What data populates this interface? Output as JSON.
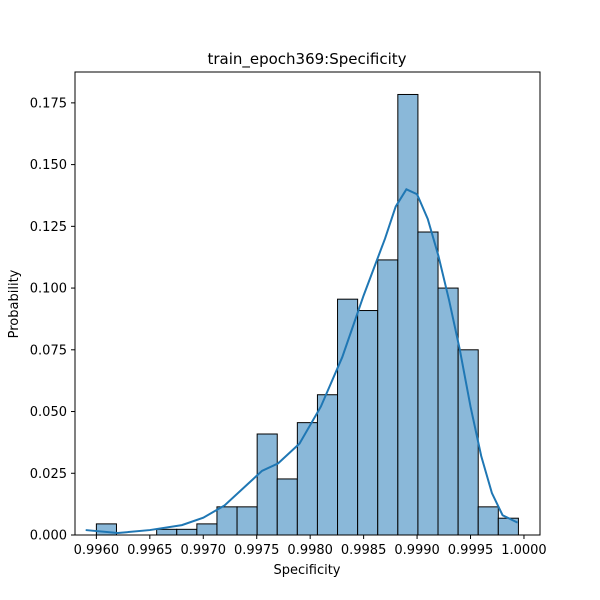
{
  "chart_data": {
    "type": "histogram",
    "title": "train_epoch369:Specificity",
    "x_label": "Specificity",
    "y_label": "Probability",
    "bins": [
      0.996,
      0.996188,
      0.996376,
      0.996564,
      0.996752,
      0.99694,
      0.997128,
      0.997316,
      0.997504,
      0.997692,
      0.99788,
      0.998068,
      0.998256,
      0.998444,
      0.998632,
      0.99882,
      0.999008,
      0.999196,
      0.999384,
      0.999572,
      0.99976,
      0.999948
    ],
    "values": [
      0.0045,
      0,
      0,
      0.0023,
      0.0023,
      0.0045,
      0.0114,
      0.0114,
      0.0409,
      0.0227,
      0.0455,
      0.0568,
      0.0955,
      0.0909,
      0.1114,
      0.1784,
      0.1227,
      0.1,
      0.075,
      0.0114,
      0.0068
    ],
    "color": "#8ab8d9",
    "edge_color": "#000000",
    "kde": {
      "color": "#1f77b4",
      "x": [
        0.9959,
        0.9962,
        0.9965,
        0.9968,
        0.997,
        0.9972,
        0.9974,
        0.99755,
        0.9977,
        0.9979,
        0.9981,
        0.9983,
        0.9985,
        0.9987,
        0.9988,
        0.9989,
        0.999,
        0.9991,
        0.9992,
        0.9993,
        0.9994,
        0.9995,
        0.9996,
        0.9997,
        0.9998,
        0.99994
      ],
      "values": [
        0.002,
        0.0008,
        0.002,
        0.004,
        0.007,
        0.012,
        0.02,
        0.026,
        0.029,
        0.037,
        0.052,
        0.072,
        0.097,
        0.12,
        0.133,
        0.14,
        0.138,
        0.128,
        0.113,
        0.095,
        0.075,
        0.052,
        0.032,
        0.017,
        0.008,
        0.005
      ]
    },
    "xlim": [
      0.9958,
      1.00015
    ],
    "ylim": [
      0,
      0.1875
    ],
    "xticks": [
      {
        "value": 0.996,
        "label": "0.9960"
      },
      {
        "value": 0.9965,
        "label": "0.9965"
      },
      {
        "value": 0.997,
        "label": "0.9970"
      },
      {
        "value": 0.9975,
        "label": "0.9975"
      },
      {
        "value": 0.998,
        "label": "0.9980"
      },
      {
        "value": 0.9985,
        "label": "0.9985"
      },
      {
        "value": 0.999,
        "label": "0.9990"
      },
      {
        "value": 0.9995,
        "label": "0.9995"
      },
      {
        "value": 1.0,
        "label": "1.0000"
      }
    ],
    "yticks": [
      {
        "value": 0,
        "label": "0.000"
      },
      {
        "value": 0.025,
        "label": "0.025"
      },
      {
        "value": 0.05,
        "label": "0.050"
      },
      {
        "value": 0.075,
        "label": "0.075"
      },
      {
        "value": 0.1,
        "label": "0.100"
      },
      {
        "value": 0.125,
        "label": "0.125"
      },
      {
        "value": 0.15,
        "label": "0.150"
      },
      {
        "value": 0.175,
        "label": "0.175"
      }
    ]
  }
}
